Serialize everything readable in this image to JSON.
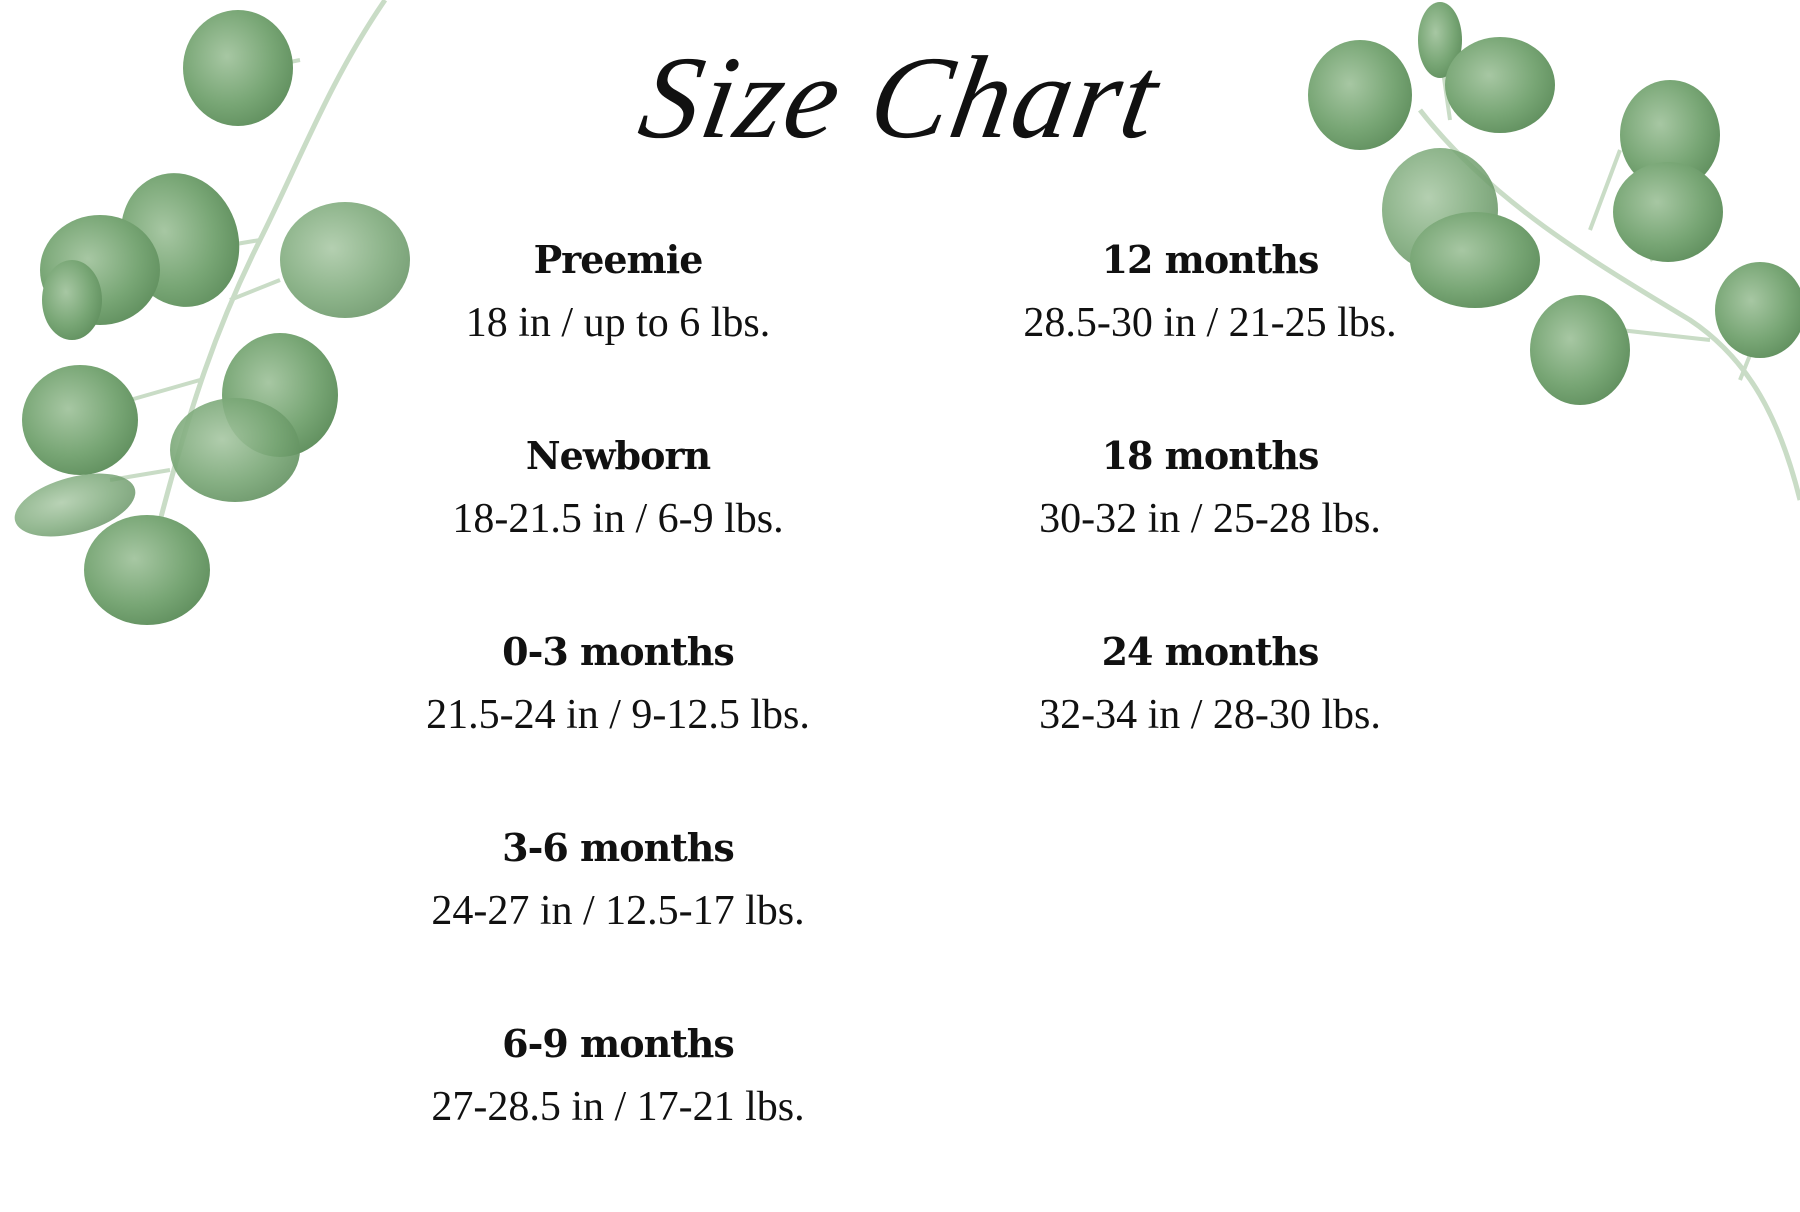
{
  "title": "Size Chart",
  "colors": {
    "leaf": "#6f9e6c",
    "leaf_light": "#a9c9a6",
    "stem": "#c9dcc6",
    "text": "#111111"
  },
  "decorations": [
    "eucalyptus-branch-left",
    "eucalyptus-branch-right"
  ],
  "left_column": [
    {
      "size": "Preemie",
      "measurement": "18 in / up to 6 lbs."
    },
    {
      "size": "Newborn",
      "measurement": "18-21.5 in / 6-9 lbs."
    },
    {
      "size": "0-3 months",
      "measurement": "21.5-24 in / 9-12.5 lbs."
    },
    {
      "size": "3-6 months",
      "measurement": "24-27 in / 12.5-17 lbs."
    },
    {
      "size": "6-9 months",
      "measurement": "27-28.5 in / 17-21 lbs."
    }
  ],
  "right_column": [
    {
      "size": "12 months",
      "measurement": "28.5-30 in / 21-25 lbs."
    },
    {
      "size": "18 months",
      "measurement": "30-32 in / 25-28 lbs."
    },
    {
      "size": "24 months",
      "measurement": "32-34 in / 28-30 lbs."
    }
  ]
}
